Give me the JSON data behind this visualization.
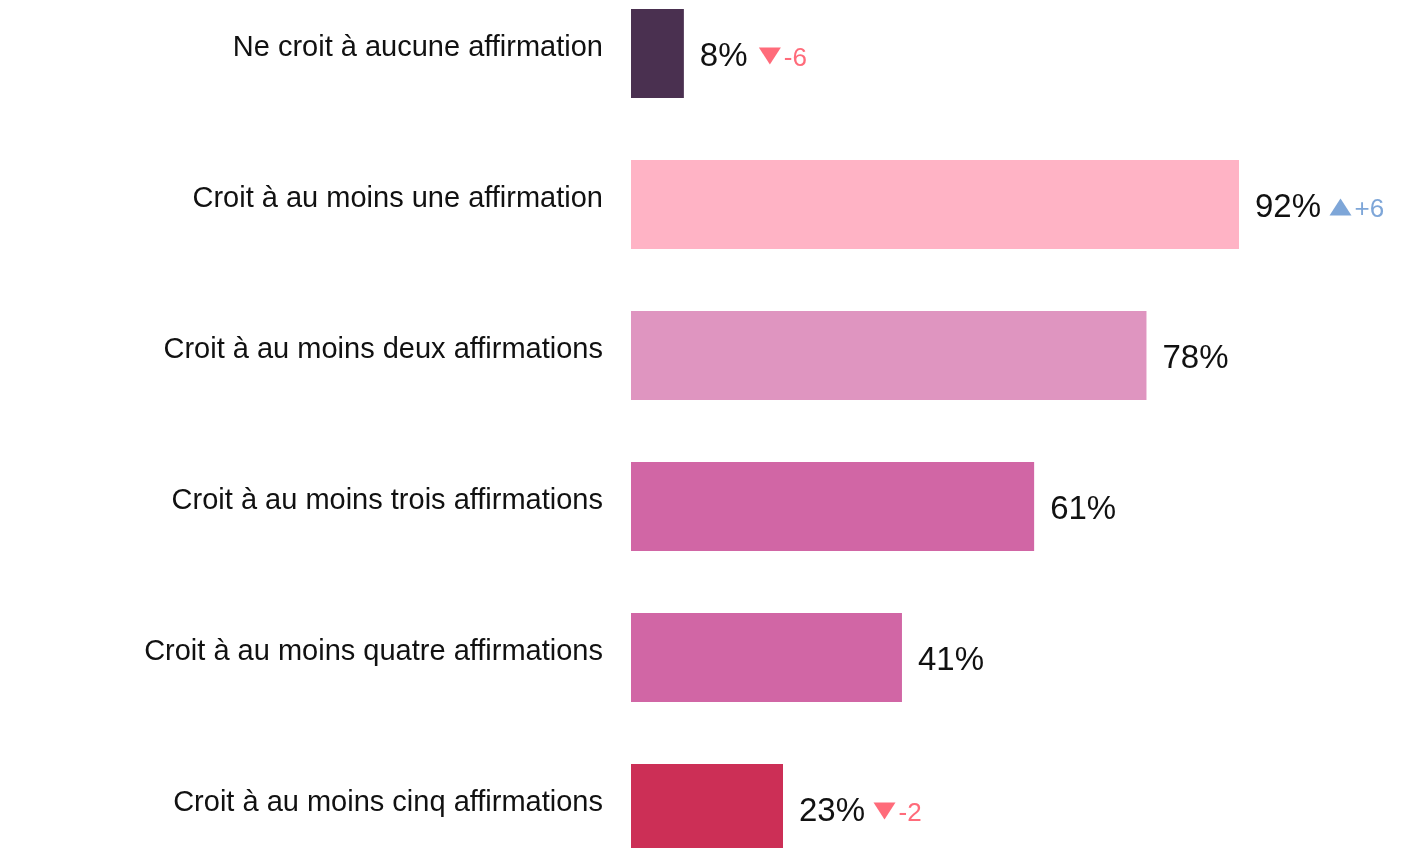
{
  "chart_data": {
    "type": "bar",
    "orientation": "horizontal",
    "categories": [
      "Ne croit à aucune affirmation",
      "Croit à au moins une affirmation",
      "Croit à au moins deux affirmations",
      "Croit à au moins trois affirmations",
      "Croit à au moins quatre affirmations",
      "Croit à au moins cinq affirmations"
    ],
    "values": [
      8,
      92,
      78,
      61,
      41,
      23
    ],
    "colors": [
      "#4a3050",
      "#ffb3c5",
      "#df95c0",
      "#d166a5",
      "#d166a5",
      "#cc2f56"
    ],
    "value_labels": [
      "8%",
      "92%",
      "78%",
      "61%",
      "41%",
      "23%"
    ],
    "annotations": [
      "-6",
      "+6",
      "-2"
    ]
  }
}
